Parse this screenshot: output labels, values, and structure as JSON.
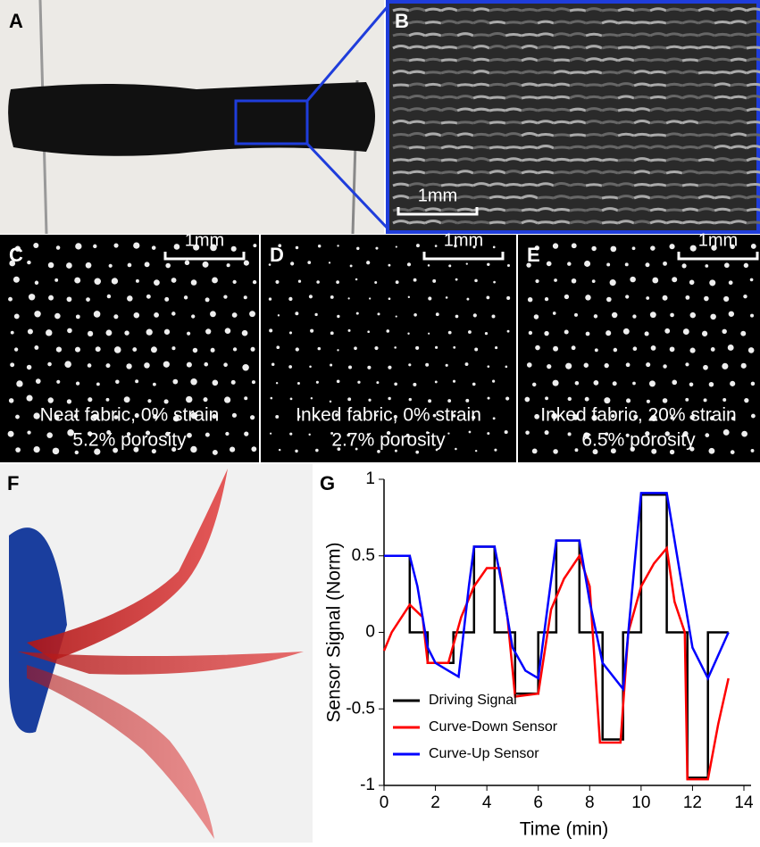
{
  "panel_labels": [
    "A",
    "B",
    "C",
    "D",
    "E",
    "F",
    "G"
  ],
  "scale_bars": [
    "1mm",
    "1mm",
    "1mm",
    "1mm"
  ],
  "captions": [
    [
      "Neat fabric, 0% strain",
      "5.2% porosity"
    ],
    [
      "Inked fabric, 0% strain",
      "2.7% porosity"
    ],
    [
      "Inked fabric, 20% strain",
      "6.5% porosity"
    ]
  ],
  "chart_data": {
    "type": "line",
    "xlabel": "Time (min)",
    "ylabel": "Sensor Signal (Norm)",
    "xlim": [
      0,
      14
    ],
    "xticks": [
      0,
      2,
      4,
      6,
      8,
      10,
      12,
      14
    ],
    "ylim": [
      -1,
      1
    ],
    "yticks": [
      1,
      0.5,
      0,
      -0.5,
      -1
    ],
    "legend": "lower left",
    "series": [
      {
        "name": "Driving Signal",
        "color": "#000000",
        "x": [
          0,
          1.0,
          1.0,
          1.7,
          1.7,
          2.7,
          2.7,
          3.5,
          3.5,
          4.3,
          4.3,
          5.1,
          5.1,
          6.0,
          6.0,
          6.7,
          6.7,
          7.6,
          7.6,
          8.5,
          8.5,
          9.3,
          9.3,
          10.0,
          10.0,
          11.0,
          11.0,
          11.8,
          11.8,
          12.6,
          12.6,
          13.4
        ],
        "values": [
          0.5,
          0.5,
          0,
          0,
          -0.2,
          -0.2,
          0,
          0,
          0.56,
          0.56,
          0,
          0,
          -0.4,
          -0.4,
          0,
          0,
          0.6,
          0.6,
          0,
          0,
          -0.7,
          -0.7,
          0,
          0,
          0.9,
          0.9,
          0,
          0,
          -0.95,
          -0.95,
          0,
          0
        ]
      },
      {
        "name": "Curve-Down Sensor",
        "color": "#ff0000",
        "x": [
          0,
          0.3,
          1.0,
          1.5,
          1.7,
          2.5,
          3.0,
          3.5,
          4.0,
          4.5,
          4.8,
          5.1,
          6.0,
          6.5,
          7.0,
          7.6,
          8.0,
          8.4,
          9.2,
          9.5,
          10.0,
          10.5,
          11.0,
          11.3,
          11.7,
          11.8,
          12.6,
          13.0,
          13.4
        ],
        "values": [
          -0.12,
          0.0,
          0.18,
          0.1,
          -0.2,
          -0.2,
          0.1,
          0.3,
          0.42,
          0.42,
          0.1,
          -0.42,
          -0.4,
          0.15,
          0.35,
          0.5,
          0.3,
          -0.72,
          -0.72,
          0.0,
          0.3,
          0.45,
          0.55,
          0.2,
          0.0,
          -0.96,
          -0.96,
          -0.6,
          -0.3
        ]
      },
      {
        "name": "Curve-Up Sensor",
        "color": "#0000ff",
        "x": [
          0,
          1.0,
          1.3,
          1.7,
          2.0,
          2.5,
          2.9,
          3.3,
          3.5,
          4.3,
          4.6,
          5.0,
          5.5,
          6.0,
          6.7,
          7.6,
          8.0,
          8.5,
          9.3,
          10.0,
          11.0,
          11.5,
          12.0,
          12.6,
          13.0,
          13.4
        ],
        "values": [
          0.5,
          0.5,
          0.3,
          -0.1,
          -0.2,
          -0.25,
          -0.29,
          0.3,
          0.56,
          0.56,
          0.3,
          -0.1,
          -0.25,
          -0.3,
          0.6,
          0.6,
          0.2,
          -0.2,
          -0.37,
          0.91,
          0.91,
          0.4,
          -0.1,
          -0.3,
          -0.15,
          0.0
        ]
      }
    ]
  }
}
